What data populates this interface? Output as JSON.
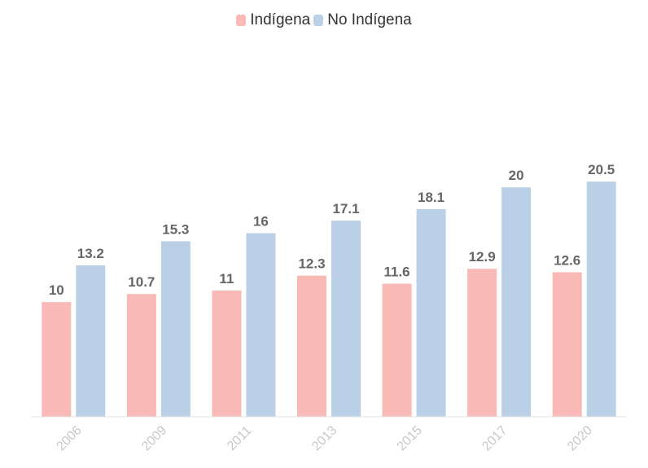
{
  "chart_data": {
    "type": "bar",
    "categories": [
      "2006",
      "2009",
      "2011",
      "2013",
      "2015",
      "2017",
      "2020"
    ],
    "series": [
      {
        "name": "Indígena",
        "color": "#f9b9b7",
        "values": [
          10,
          10.7,
          11,
          12.3,
          11.6,
          12.9,
          12.6
        ]
      },
      {
        "name": "No Indígena",
        "color": "#bad0e6",
        "values": [
          13.2,
          15.3,
          16,
          17.1,
          18.1,
          20,
          20.5
        ]
      }
    ],
    "title": "",
    "xlabel": "",
    "ylabel": "",
    "ylim": [
      0,
      33.5
    ],
    "grid": false,
    "legend_position": "top-center",
    "data_labels": true
  }
}
